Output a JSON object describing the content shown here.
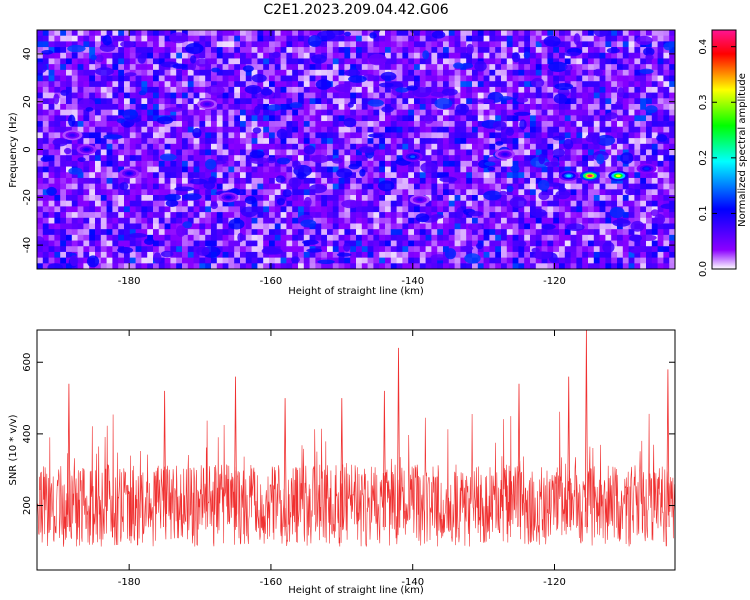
{
  "title": "C2E1.2023.209.04.42.G06",
  "chart_data": [
    {
      "type": "heatmap",
      "xlabel": "Height of straight line (km)",
      "ylabel": "Frequency (Hz)",
      "xlim": [
        -193,
        -103
      ],
      "ylim": [
        -50,
        50
      ],
      "x_ticks": [
        -180,
        -160,
        -140,
        -120
      ],
      "y_ticks": [
        -40,
        -20,
        0,
        20,
        40
      ],
      "grid": false,
      "colorbar": {
        "label": "Normalized spectral amplitude",
        "range": [
          0,
          0.43
        ],
        "ticks": [
          0.0,
          0.1,
          0.2,
          0.3,
          0.4
        ],
        "colors": [
          "#ffffff",
          "#8b00ff",
          "#0000ff",
          "#00ffff",
          "#00ff00",
          "#ffff00",
          "#ff0000",
          "#ff1493"
        ]
      },
      "hotspots": [
        {
          "x": -115,
          "y": -11,
          "value": 0.42
        },
        {
          "x": -111,
          "y": -11,
          "value": 0.32
        },
        {
          "x": -118,
          "y": -11,
          "value": 0.18
        },
        {
          "x": -107,
          "y": -8,
          "value": 0.12
        },
        {
          "x": -140,
          "y": -3,
          "value": 0.14
        },
        {
          "x": -186,
          "y": 0,
          "value": 0.1
        },
        {
          "x": -188,
          "y": 6,
          "value": 0.08
        },
        {
          "x": -180,
          "y": -10,
          "value": 0.1
        },
        {
          "x": -169,
          "y": 19,
          "value": 0.08
        },
        {
          "x": -127,
          "y": -2,
          "value": 0.09
        },
        {
          "x": -166,
          "y": -20,
          "value": 0.1
        },
        {
          "x": -139,
          "y": -21,
          "value": 0.08
        }
      ]
    },
    {
      "type": "line",
      "xlabel": "Height of straight line (km)",
      "ylabel": "SNR (10 * v/v)",
      "xlim": [
        -193,
        -103
      ],
      "ylim": [
        20,
        690
      ],
      "x_ticks": [
        -180,
        -160,
        -140,
        -120
      ],
      "y_ticks": [
        200,
        400,
        600
      ],
      "grid": false,
      "series": [
        {
          "color": "#f03030",
          "baseline_mean": 200,
          "peaks": [
            {
              "x": -188.5,
              "y": 540
            },
            {
              "x": -175,
              "y": 520
            },
            {
              "x": -165,
              "y": 560
            },
            {
              "x": -158,
              "y": 500
            },
            {
              "x": -150,
              "y": 500
            },
            {
              "x": -144,
              "y": 520
            },
            {
              "x": -142,
              "y": 640
            },
            {
              "x": -125,
              "y": 540
            },
            {
              "x": -118,
              "y": 560
            },
            {
              "x": -115.5,
              "y": 690
            },
            {
              "x": -104,
              "y": 580
            }
          ]
        }
      ]
    }
  ]
}
